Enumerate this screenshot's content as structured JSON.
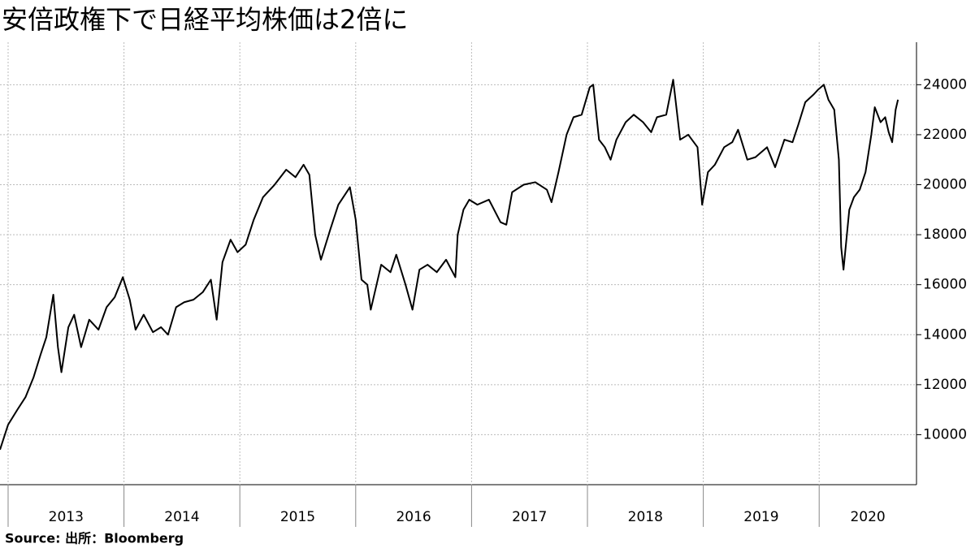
{
  "chart_data": {
    "type": "line",
    "title": "安倍政権下で日経平均株価は2倍に",
    "source": "Source:  出所：Bloomberg",
    "x": [
      2012.93,
      2013.0,
      2013.08,
      2013.15,
      2013.22,
      2013.28,
      2013.33,
      2013.39,
      2013.43,
      2013.46,
      2013.52,
      2013.57,
      2013.63,
      2013.7,
      2013.78,
      2013.85,
      2013.92,
      2013.99,
      2014.05,
      2014.1,
      2014.17,
      2014.25,
      2014.32,
      2014.38,
      2014.45,
      2014.52,
      2014.6,
      2014.68,
      2014.75,
      2014.8,
      2014.85,
      2014.92,
      2014.98,
      2015.05,
      2015.12,
      2015.2,
      2015.3,
      2015.4,
      2015.48,
      2015.55,
      2015.6,
      2015.65,
      2015.7,
      2015.78,
      2015.85,
      2015.95,
      2016.0,
      2016.05,
      2016.1,
      2016.13,
      2016.22,
      2016.3,
      2016.35,
      2016.43,
      2016.49,
      2016.55,
      2016.62,
      2016.7,
      2016.78,
      2016.86,
      2016.88,
      2016.93,
      2016.98,
      2017.05,
      2017.15,
      2017.25,
      2017.3,
      2017.35,
      2017.45,
      2017.55,
      2017.65,
      2017.69,
      2017.75,
      2017.82,
      2017.88,
      2017.95,
      2018.02,
      2018.05,
      2018.1,
      2018.15,
      2018.2,
      2018.25,
      2018.33,
      2018.4,
      2018.48,
      2018.55,
      2018.6,
      2018.68,
      2018.74,
      2018.8,
      2018.87,
      2018.95,
      2018.99,
      2019.04,
      2019.1,
      2019.18,
      2019.25,
      2019.3,
      2019.38,
      2019.45,
      2019.55,
      2019.62,
      2019.7,
      2019.77,
      2019.82,
      2019.88,
      2019.95,
      2019.99,
      2020.04,
      2020.08,
      2020.13,
      2020.17,
      2020.19,
      2020.21,
      2020.26,
      2020.3,
      2020.35,
      2020.4,
      2020.45,
      2020.48,
      2020.53,
      2020.57,
      2020.6,
      2020.63,
      2020.66,
      2020.68
    ],
    "series": [
      {
        "name": "日経平均株価",
        "color": "#000000",
        "values": [
          9400,
          10400,
          11000,
          11500,
          12300,
          13200,
          13900,
          15600,
          13500,
          12500,
          14300,
          14800,
          13500,
          14600,
          14200,
          15100,
          15500,
          16300,
          15400,
          14200,
          14800,
          14100,
          14300,
          14000,
          15100,
          15300,
          15400,
          15700,
          16200,
          14600,
          16900,
          17800,
          17300,
          17600,
          18600,
          19500,
          20000,
          20600,
          20300,
          20800,
          20400,
          18000,
          17000,
          18200,
          19200,
          19900,
          18600,
          16200,
          16000,
          15000,
          16800,
          16500,
          17200,
          16000,
          15000,
          16600,
          16800,
          16500,
          17000,
          16300,
          18000,
          19000,
          19400,
          19200,
          19400,
          18500,
          18400,
          19700,
          20000,
          20100,
          19800,
          19300,
          20500,
          22000,
          22700,
          22800,
          23900,
          24000,
          21800,
          21500,
          21000,
          21800,
          22500,
          22800,
          22500,
          22100,
          22700,
          22800,
          24200,
          21800,
          22000,
          21500,
          19200,
          20500,
          20800,
          21500,
          21700,
          22200,
          21000,
          21100,
          21500,
          20700,
          21800,
          21700,
          22400,
          23300,
          23600,
          23800,
          24000,
          23400,
          23000,
          21000,
          17500,
          16600,
          19000,
          19500,
          19800,
          20500,
          22000,
          23100,
          22500,
          22700,
          22100,
          21700,
          23000,
          23400
        ]
      }
    ],
    "xlim": [
      2012.93,
      2020.84
    ],
    "xticks": [
      2013,
      2014,
      2015,
      2016,
      2017,
      2018,
      2019,
      2020
    ],
    "ylim": [
      8000,
      25700
    ],
    "yticks": [
      10000,
      12000,
      14000,
      16000,
      18000,
      20000,
      22000,
      24000
    ],
    "grid": true
  }
}
